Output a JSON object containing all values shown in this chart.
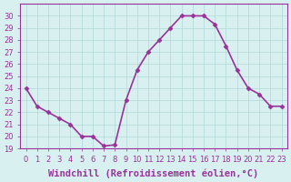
{
  "x": [
    0,
    1,
    2,
    3,
    4,
    5,
    6,
    7,
    8,
    9,
    10,
    11,
    12,
    13,
    14,
    15,
    16,
    17,
    18,
    19,
    20,
    21,
    22,
    23
  ],
  "y": [
    24,
    22.5,
    22,
    21.5,
    21,
    20,
    20,
    19.2,
    19.3,
    23,
    25.5,
    27,
    28,
    29,
    30,
    30,
    30,
    29.3,
    27.5,
    25.5,
    24,
    23.5,
    22.5,
    22.5
  ],
  "line_color": "#993399",
  "marker": "D",
  "marker_size": 2.5,
  "bg_color": "#d8f0f0",
  "grid_color": "#b0d8d8",
  "xlabel": "Windchill (Refroidissement éolien,°C)",
  "xlabel_fontsize": 7.5,
  "ylim": [
    19,
    31
  ],
  "yticks": [
    19,
    20,
    21,
    22,
    23,
    24,
    25,
    26,
    27,
    28,
    29,
    30
  ],
  "xticks": [
    0,
    1,
    2,
    3,
    4,
    5,
    6,
    7,
    8,
    9,
    10,
    11,
    12,
    13,
    14,
    15,
    16,
    17,
    18,
    19,
    20,
    21,
    22,
    23
  ],
  "tick_fontsize": 6,
  "line_color_hex": "#993399",
  "spine_color": "#993399",
  "line_width": 1.2
}
